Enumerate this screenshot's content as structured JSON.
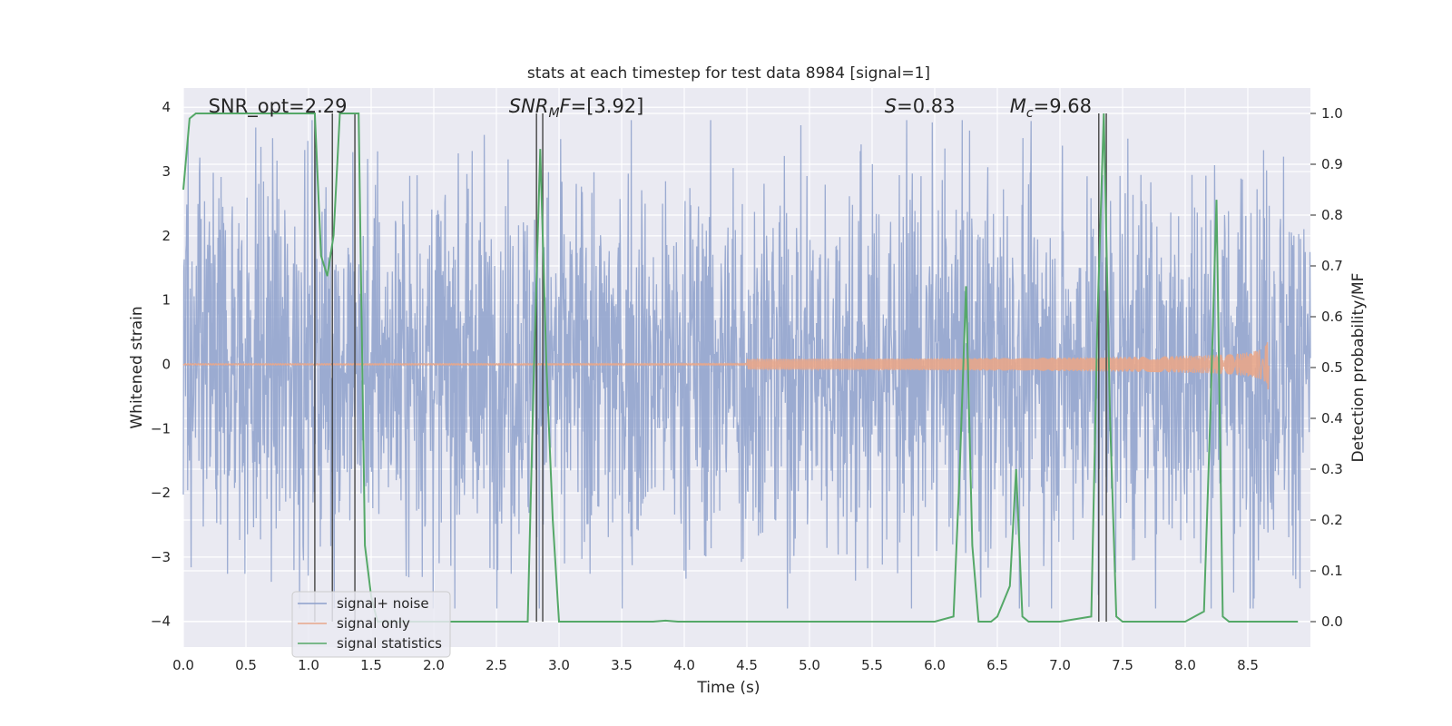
{
  "chart_data": {
    "type": "line",
    "title": "stats at each timestep for test data 8984 [signal=1]",
    "xlabel": "Time (s)",
    "ylabel": "Whitened strain",
    "y2label": "Detection probability/MF",
    "xlim": [
      0,
      9.0
    ],
    "ylim": [
      -4.4,
      4.3
    ],
    "y2lim": [
      -0.05,
      1.05
    ],
    "x_ticks": [
      0.0,
      0.5,
      1.0,
      1.5,
      2.0,
      2.5,
      3.0,
      3.5,
      4.0,
      4.5,
      5.0,
      5.5,
      6.0,
      6.5,
      7.0,
      7.5,
      8.0,
      8.5
    ],
    "x_tick_labels": [
      "0.0",
      "0.5",
      "1.0",
      "1.5",
      "2.0",
      "2.5",
      "3.0",
      "3.5",
      "4.0",
      "4.5",
      "5.0",
      "5.5",
      "6.0",
      "6.5",
      "7.0",
      "7.5",
      "8.0",
      "8.5"
    ],
    "y_ticks": [
      -4,
      -3,
      -2,
      -1,
      0,
      1,
      2,
      3,
      4
    ],
    "y_tick_labels": [
      "−4",
      "−3",
      "−2",
      "−1",
      "0",
      "1",
      "2",
      "3",
      "4"
    ],
    "y2_ticks": [
      0.0,
      0.1,
      0.2,
      0.3,
      0.4,
      0.5,
      0.6,
      0.7,
      0.8,
      0.9,
      1.0
    ],
    "y2_tick_labels": [
      "0.0",
      "0.1",
      "0.2",
      "0.3",
      "0.4",
      "0.5",
      "0.6",
      "0.7",
      "0.8",
      "0.9",
      "1.0"
    ],
    "grid": true,
    "legend_placement": "lower-left",
    "annotations": [
      {
        "key": "snr_opt",
        "text": "SNR_opt=2.29",
        "x": 0.2
      },
      {
        "key": "snr_mf",
        "text": "SNR_MF=[3.92]",
        "x": 2.6
      },
      {
        "key": "s",
        "text": "S=0.83",
        "x": 5.6
      },
      {
        "key": "mc",
        "text": "M_c=9.68",
        "x": 6.6
      }
    ],
    "series": [
      {
        "name": "signal+ noise",
        "color": "#8da0cb",
        "axis": "left",
        "style": "dense-noise",
        "x_range": [
          0,
          9.0
        ],
        "typical_amplitude": 2.2,
        "max_amplitude": 3.8
      },
      {
        "name": "signal only",
        "color": "#e8a68a",
        "axis": "left",
        "style": "chirp",
        "x_range": [
          0,
          8.67
        ],
        "peak_amplitude": 0.45,
        "peak_time": 8.67
      },
      {
        "name": "signal statistics",
        "color": "#55a868",
        "axis": "right",
        "x": [
          0.0,
          0.05,
          0.1,
          0.15,
          0.2,
          0.5,
          0.8,
          1.0,
          1.05,
          1.1,
          1.15,
          1.2,
          1.25,
          1.3,
          1.35,
          1.4,
          1.45,
          1.5,
          1.55,
          1.6,
          2.0,
          2.5,
          2.75,
          2.8,
          2.85,
          2.9,
          2.95,
          3.0,
          3.05,
          3.5,
          3.75,
          3.85,
          3.95,
          4.5,
          5.0,
          5.5,
          6.0,
          6.15,
          6.2,
          6.25,
          6.3,
          6.35,
          6.45,
          6.5,
          6.6,
          6.65,
          6.7,
          6.75,
          7.0,
          7.25,
          7.3,
          7.35,
          7.4,
          7.45,
          7.5,
          8.0,
          8.15,
          8.2,
          8.25,
          8.3,
          8.35,
          8.5,
          8.9
        ],
        "values": [
          0.85,
          0.99,
          1.0,
          1.0,
          1.0,
          1.0,
          1.0,
          1.0,
          1.0,
          0.72,
          0.68,
          0.76,
          1.0,
          1.0,
          1.0,
          1.0,
          0.15,
          0.05,
          0.0,
          0.0,
          0.0,
          0.0,
          0.0,
          0.5,
          0.93,
          0.5,
          0.2,
          0.0,
          0.0,
          0.0,
          0.0,
          0.002,
          0.0,
          0.0,
          0.0,
          0.0,
          0.0,
          0.01,
          0.3,
          0.66,
          0.15,
          0.0,
          0.0,
          0.01,
          0.07,
          0.3,
          0.01,
          0.0,
          0.0,
          0.01,
          0.6,
          1.0,
          0.4,
          0.01,
          0.0,
          0.0,
          0.02,
          0.4,
          0.83,
          0.01,
          0.0,
          0.0,
          0.0
        ]
      }
    ],
    "vertical_markers": [
      1.05,
      1.19,
      1.37,
      2.82,
      2.87,
      7.31,
      7.37
    ]
  }
}
